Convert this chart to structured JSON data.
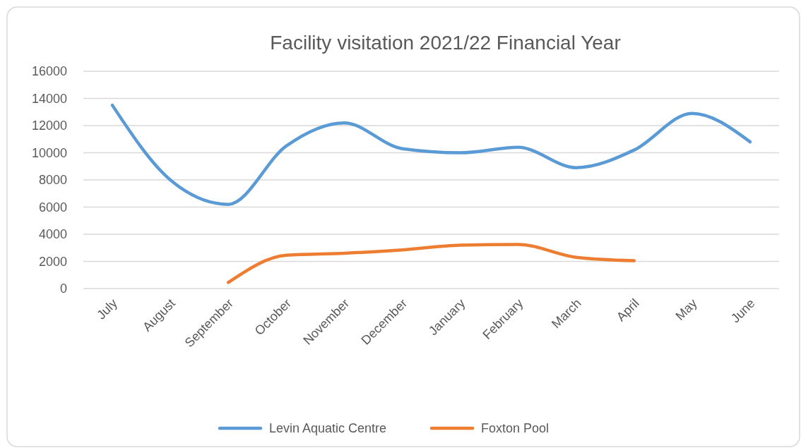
{
  "chart_data": {
    "type": "line",
    "title": "Facility visitation 2021/22 Financial Year",
    "categories": [
      "July",
      "August",
      "September",
      "October",
      "November",
      "December",
      "January",
      "February",
      "March",
      "April",
      "May",
      "June"
    ],
    "series": [
      {
        "name": "Levin Aquatic Centre",
        "color": "#5b9bd5",
        "values": [
          13500,
          8000,
          6200,
          10500,
          12200,
          10300,
          10000,
          10400,
          8900,
          10200,
          12900,
          10800
        ]
      },
      {
        "name": "Foxton Pool",
        "color": "#ed7d31",
        "values": [
          null,
          null,
          450,
          2450,
          2600,
          2850,
          3200,
          3250,
          2300,
          2050,
          null,
          null
        ]
      }
    ],
    "ylim": [
      0,
      16000
    ],
    "yticks": [
      0,
      2000,
      4000,
      6000,
      8000,
      10000,
      12000,
      14000,
      16000
    ],
    "grid": "y",
    "legend": "bottom",
    "marker": "none",
    "line_style": "solid"
  }
}
